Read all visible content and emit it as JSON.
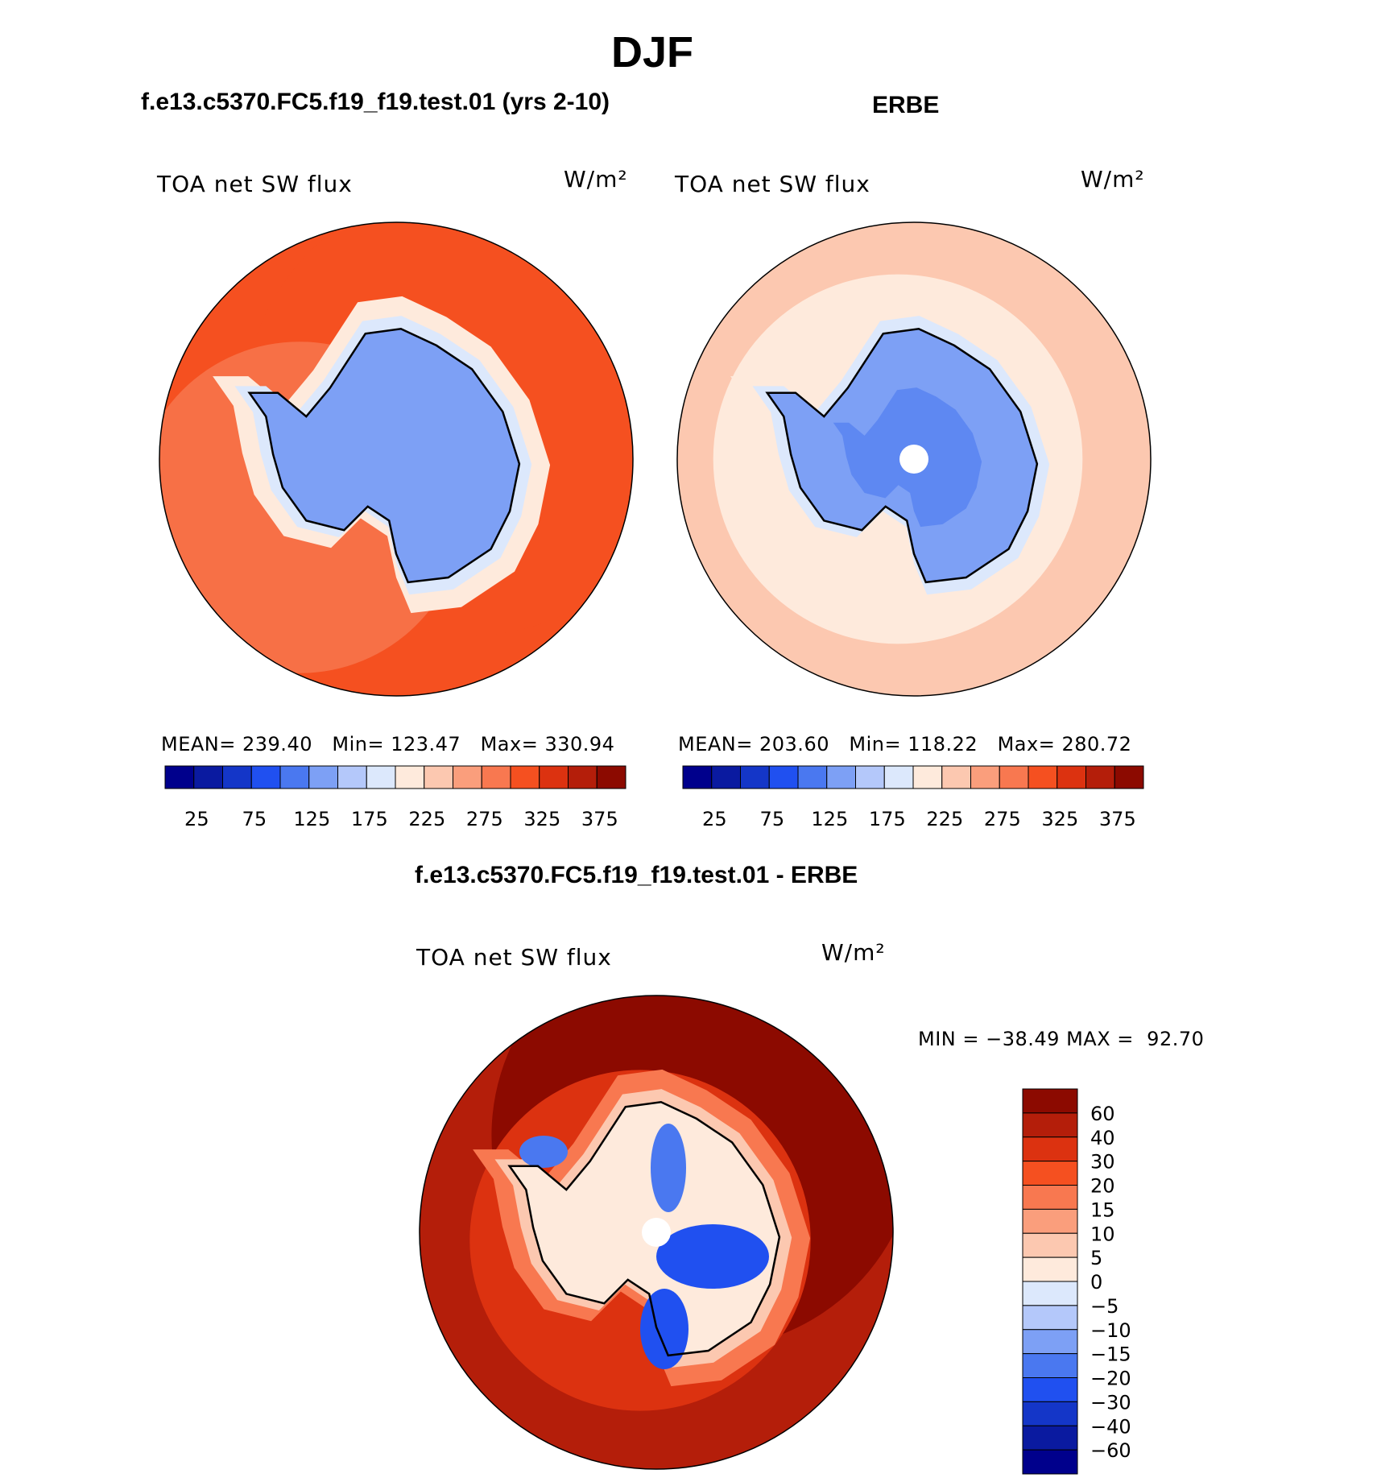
{
  "page": {
    "title": "DJF",
    "subplots": [
      {
        "subtitle": "f.e13.c5370.FC5.f19_f19.test.01 (yrs 2-10)",
        "variable": "TOA net SW flux",
        "units": "W/m²",
        "stats": {
          "mean_label": "MEAN=",
          "mean": "239.40",
          "min_label": "Min=",
          "min": "123.47",
          "max_label": "Max=",
          "max": "330.94"
        }
      },
      {
        "subtitle": "ERBE",
        "variable": "TOA net SW flux",
        "units": "W/m²",
        "stats": {
          "mean_label": "MEAN=",
          "mean": "203.60",
          "min_label": "Min=",
          "min": "118.22",
          "max_label": "Max=",
          "max": "280.72"
        }
      },
      {
        "subtitle": "f.e13.c5370.FC5.f19_f19.test.01 - ERBE",
        "variable": "TOA net SW flux",
        "units": "W/m²",
        "stats": {
          "min_label": "MIN =",
          "min": "−38.49",
          "max_label": "MAX =",
          "max": "92.70"
        }
      }
    ]
  },
  "chart_data": [
    {
      "type": "heatmap",
      "projection": "south polar stereographic",
      "title": "f.e13.c5370.FC5.f19_f19.test.01 (yrs 2-10)",
      "variable": "TOA net SW flux",
      "units": "W/m2",
      "colorbar": {
        "tick_labels": [
          "25",
          "75",
          "125",
          "175",
          "225",
          "275",
          "325",
          "375"
        ],
        "colors": [
          "#00008c",
          "#0a1aa0",
          "#1436c8",
          "#2050f0",
          "#4a78f0",
          "#7da0f5",
          "#b4c8fa",
          "#dce8fc",
          "#feeadc",
          "#fcc8b0",
          "#fa9e7c",
          "#f87850",
          "#f55020",
          "#dc3210",
          "#b41e0a",
          "#8c0a00"
        ]
      },
      "regions": [
        {
          "name": "ocean",
          "value": 310,
          "color": "#f55020"
        },
        {
          "name": "antarctica",
          "value": 140,
          "color": "#7da0f5"
        }
      ]
    },
    {
      "type": "heatmap",
      "projection": "south polar stereographic",
      "title": "ERBE",
      "variable": "TOA net SW flux",
      "units": "W/m2",
      "colorbar": {
        "tick_labels": [
          "25",
          "75",
          "125",
          "175",
          "225",
          "275",
          "325",
          "375"
        ],
        "colors": [
          "#00008c",
          "#0a1aa0",
          "#1436c8",
          "#2050f0",
          "#4a78f0",
          "#7da0f5",
          "#b4c8fa",
          "#dce8fc",
          "#feeadc",
          "#fcc8b0",
          "#fa9e7c",
          "#f87850",
          "#f55020",
          "#dc3210",
          "#b41e0a",
          "#8c0a00"
        ]
      },
      "regions": [
        {
          "name": "ocean",
          "value": 265,
          "color": "#fcc8b0"
        },
        {
          "name": "antarctica",
          "value": 135,
          "color": "#7da0f5"
        }
      ]
    },
    {
      "type": "heatmap",
      "projection": "south polar stereographic",
      "title": "f.e13.c5370.FC5.f19_f19.test.01 - ERBE",
      "variable": "TOA net SW flux",
      "units": "W/m2",
      "colorbar": {
        "tick_labels": [
          "60",
          "40",
          "30",
          "20",
          "15",
          "10",
          "5",
          "0",
          "−5",
          "−10",
          "−15",
          "−20",
          "−30",
          "−40",
          "−60"
        ],
        "colors": [
          "#8c0a00",
          "#b41e0a",
          "#dc3210",
          "#f55020",
          "#f87850",
          "#fa9e7c",
          "#fcc8b0",
          "#feeadc",
          "#dce8fc",
          "#b4c8fa",
          "#7da0f5",
          "#4a78f0",
          "#2050f0",
          "#1436c8",
          "#0a1aa0",
          "#00008c"
        ]
      },
      "regions": [
        {
          "name": "ocean",
          "value": 45,
          "color": "#b41e0a"
        },
        {
          "name": "antarctica",
          "value": 0,
          "color": "#feeadc"
        }
      ]
    }
  ]
}
